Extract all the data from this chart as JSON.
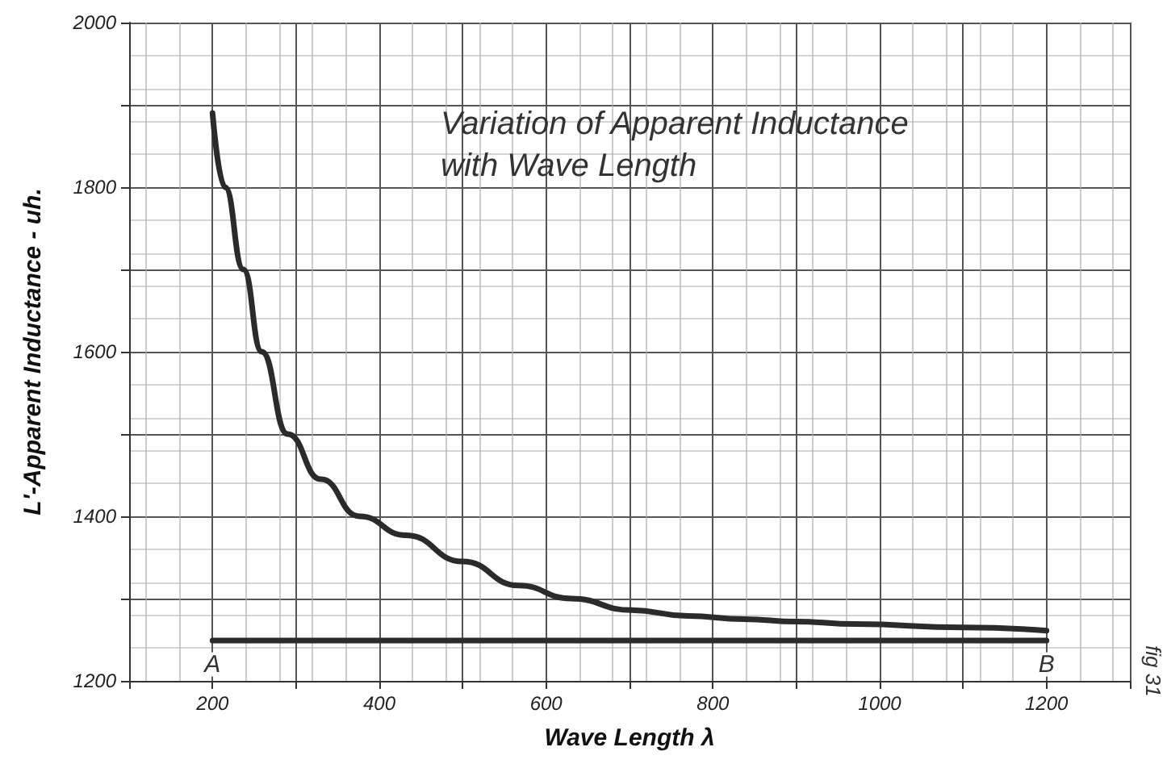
{
  "chart_data": {
    "type": "line",
    "title": "Variation of Apparent Inductance with Wave Length",
    "xlabel": "Wave Length λ",
    "ylabel": "L'-Apparent Inductance - uh.",
    "series": [
      {
        "color": "#2b2b2b",
        "x": [
          200,
          215,
          237,
          259,
          290,
          330,
          376,
          432,
          500,
          567,
          630,
          702,
          770,
          837,
          900,
          971,
          1100,
          1200
        ],
        "values": [
          1890,
          1800,
          1700,
          1600,
          1500,
          1445,
          1400,
          1377,
          1345,
          1316,
          1300,
          1286,
          1279,
          1275,
          1272,
          1269,
          1265,
          1261
        ]
      },
      {
        "color": "#2b2b2b",
        "x": [
          200,
          1200
        ],
        "values": [
          1249,
          1249
        ]
      }
    ],
    "xlim": [
      100,
      1300
    ],
    "ylim": [
      1200,
      2000
    ],
    "xticks": [
      {
        "value": 100,
        "label": null
      },
      200,
      {
        "value": 300,
        "label": null
      },
      400,
      {
        "value": 500,
        "label": null
      },
      600,
      {
        "value": 700,
        "label": null
      },
      800,
      {
        "value": 900,
        "label": null
      },
      1000,
      {
        "value": 1100,
        "label": null
      },
      1200,
      {
        "value": 1300,
        "label": null
      }
    ],
    "yticks": [
      1200,
      {
        "value": 1300,
        "label": null
      },
      1400,
      {
        "value": 1500,
        "label": null
      },
      1600,
      {
        "value": 1700,
        "label": null
      },
      1800,
      {
        "value": 1900,
        "label": null
      },
      2000
    ],
    "annotations": [
      {
        "text": "A",
        "x": 200,
        "y": 1220
      },
      {
        "text": "B",
        "x": 1200,
        "y": 1220
      },
      "fig 31"
    ],
    "grid": true,
    "marker": "none",
    "line_style": "solid"
  }
}
